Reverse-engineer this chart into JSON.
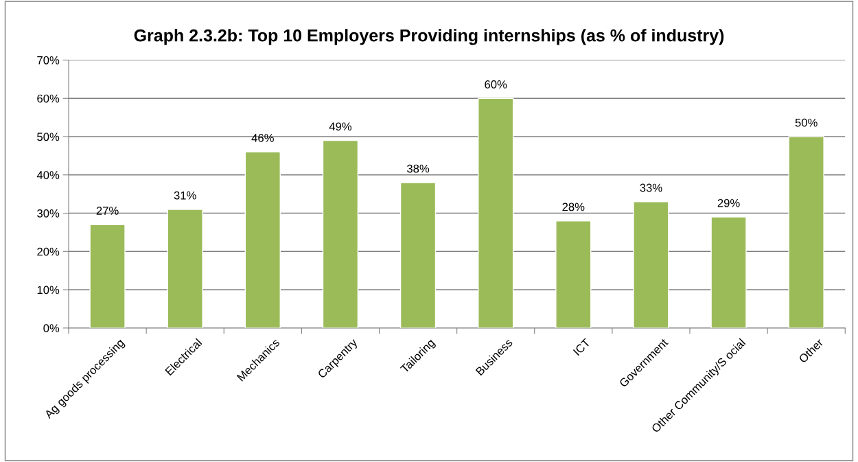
{
  "chart_data": {
    "type": "bar",
    "title": "Graph 2.3.2b: Top 10 Employers Providing internships (as % of industry)",
    "categories": [
      "Ag goods processing",
      "Electrical",
      "Mechanics",
      "Carpentry",
      "Tailoring",
      "Business",
      "ICT",
      "Government",
      "Other Community/S ocial",
      "Other"
    ],
    "values": [
      27,
      31,
      46,
      49,
      38,
      60,
      28,
      33,
      29,
      50
    ],
    "value_labels": [
      "27%",
      "31%",
      "46%",
      "49%",
      "38%",
      "60%",
      "28%",
      "33%",
      "29%",
      "50%"
    ],
    "color": "#9bbb59",
    "ylim": [
      0,
      70
    ],
    "yticks": [
      {
        "value": 0,
        "label": "0%"
      },
      {
        "value": 10,
        "label": "10%"
      },
      {
        "value": 20,
        "label": "20%"
      },
      {
        "value": 30,
        "label": "30%"
      },
      {
        "value": 40,
        "label": "40%"
      },
      {
        "value": 50,
        "label": "50%"
      },
      {
        "value": 60,
        "label": "60%"
      },
      {
        "value": 70,
        "label": "70%"
      }
    ],
    "grid": "y"
  }
}
